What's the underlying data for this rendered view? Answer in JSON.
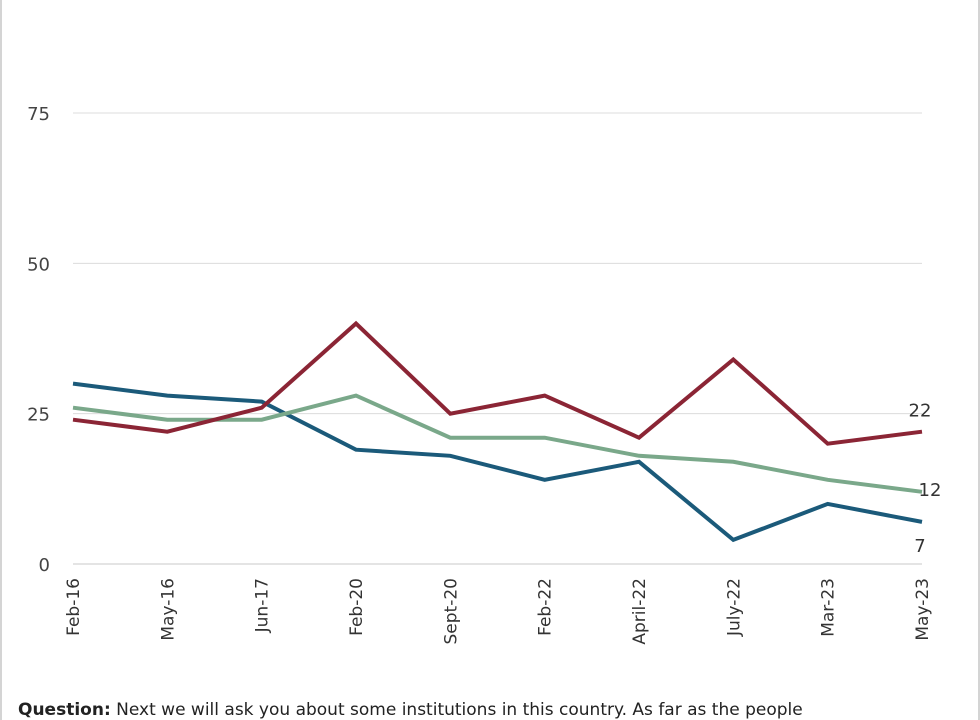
{
  "chart_data": {
    "type": "line",
    "x": [
      "Feb-16",
      "May-16",
      "Jun-17",
      "Feb-20",
      "Sept-20",
      "Feb-22",
      "April-22",
      "July-22",
      "Mar-23",
      "May-23"
    ],
    "ylim": [
      0,
      75
    ],
    "yticks": [
      0,
      25,
      50,
      75
    ],
    "grid": true,
    "series": [
      {
        "color": "#1b5a7a",
        "values": [
          30,
          28,
          27,
          19,
          18,
          14,
          17,
          4,
          10,
          7
        ],
        "end_label": "7"
      },
      {
        "color": "#7aa88a",
        "values": [
          26,
          24,
          24,
          28,
          21,
          21,
          18,
          17,
          14,
          12
        ],
        "end_label": "12"
      },
      {
        "color": "#8b2535",
        "values": [
          24,
          22,
          26,
          40,
          25,
          28,
          21,
          34,
          20,
          22
        ],
        "end_label": "22"
      }
    ]
  },
  "footnote": {
    "label": "Question:",
    "text": " Next we will ask you about some institutions in this country. As far as the people"
  }
}
